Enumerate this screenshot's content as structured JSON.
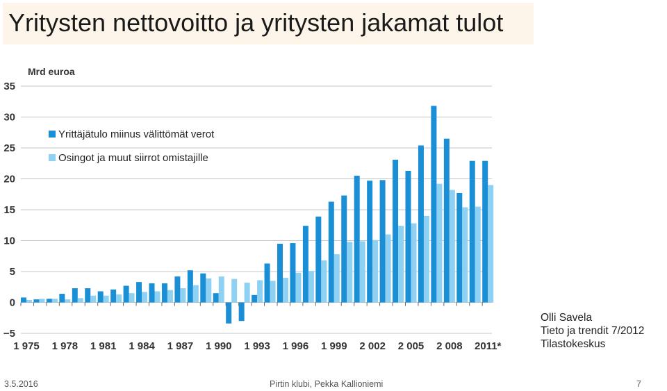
{
  "slide": {
    "title": "Yritysten nettovoitto ja yritysten jakamat tulot",
    "credit": [
      "Olli Savela",
      "Tieto ja trendit 7/2012",
      "Tilastokeskus"
    ],
    "footer": {
      "date": "3.5.2016",
      "center": "Pirtin klubi, Pekka Kallioniemi",
      "page": "7"
    }
  },
  "chart_data": {
    "type": "bar",
    "ylabel": "Mrd euroa",
    "ylim": [
      -5,
      35
    ],
    "yticks": [
      35,
      30,
      25,
      20,
      15,
      10,
      5,
      0,
      -5
    ],
    "grid": true,
    "legend_position": "top-left",
    "x": [
      1975,
      1976,
      1977,
      1978,
      1979,
      1980,
      1981,
      1982,
      1983,
      1984,
      1985,
      1986,
      1987,
      1988,
      1989,
      1990,
      1991,
      1992,
      1993,
      1994,
      1995,
      1996,
      1997,
      1998,
      1999,
      2000,
      2001,
      2002,
      2003,
      2004,
      2005,
      2006,
      2007,
      2008,
      2009,
      2010,
      2011
    ],
    "xtick_labels": [
      "1 975",
      "1 978",
      "1 981",
      "1 984",
      "1 987",
      "1 990",
      "1 993",
      "1 996",
      "1 999",
      "2 002",
      "2 005",
      "2 008",
      "2011*"
    ],
    "series": [
      {
        "name": "Yrittäjätulo miinus välittömät verot",
        "color": "#1a8fd6",
        "values": [
          0.8,
          0.5,
          0.6,
          1.4,
          2.3,
          2.3,
          1.8,
          2.1,
          2.7,
          3.3,
          3.1,
          3.1,
          4.2,
          5.2,
          4.7,
          1.5,
          -3.4,
          -3.0,
          1.2,
          6.3,
          9.5,
          9.6,
          12.4,
          13.9,
          16.3,
          17.3,
          20.5,
          19.7,
          19.8,
          23.1,
          21.3,
          25.4,
          31.8,
          26.5,
          17.7,
          22.9,
          22.9
        ]
      },
      {
        "name": "Osingot ja muut siirrot omistajille",
        "color": "#8fd1f2",
        "values": [
          0.4,
          0.6,
          0.6,
          0.5,
          0.7,
          1.1,
          1.1,
          1.3,
          1.5,
          1.7,
          1.8,
          2.0,
          2.3,
          2.8,
          3.9,
          4.2,
          3.8,
          3.2,
          3.6,
          3.5,
          4.0,
          4.8,
          5.1,
          6.8,
          7.8,
          9.8,
          9.9,
          10.1,
          11.0,
          12.4,
          12.8,
          14.0,
          19.2,
          18.2,
          15.4,
          15.5,
          19.0
        ]
      }
    ]
  }
}
